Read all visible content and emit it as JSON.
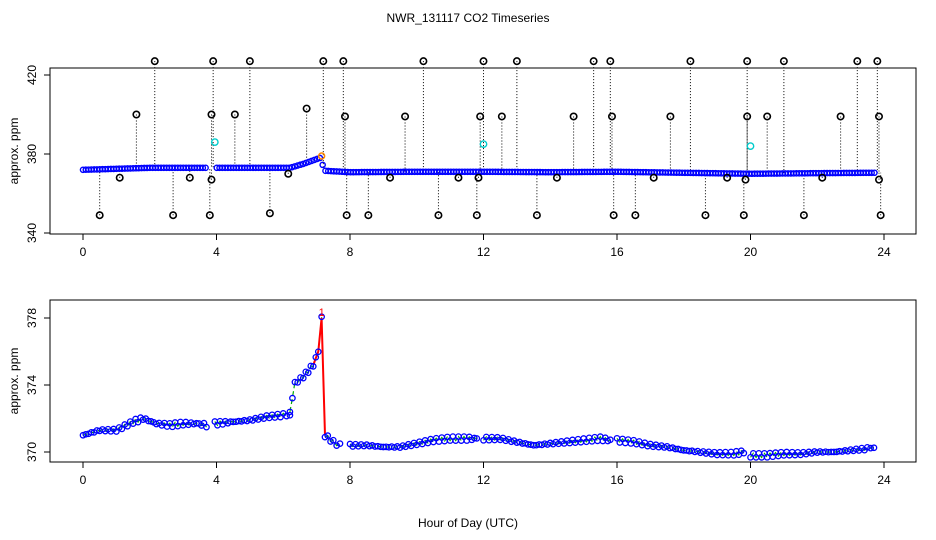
{
  "chart_data": {
    "title": "NWR_131117  CO2 Timeseries",
    "xlabel": "Hour of Day (UTC)",
    "colors": {
      "points": "#0000ff",
      "outline_points": "#000000",
      "flagged": "#00cccc",
      "smooth": "#00aa00",
      "spike": "#ff0000",
      "spike_marker": "#ff8800"
    },
    "panels": [
      {
        "type": "scatter",
        "ylabel": "approx. ppm",
        "xlim": [
          0,
          24
        ],
        "ylim": [
          340,
          420
        ],
        "x_ticks": [
          "0",
          "4",
          "8",
          "12",
          "16",
          "20",
          "24"
        ],
        "y_ticks": [
          "340",
          "380",
          "420"
        ],
        "y_tick_values": [
          340,
          380,
          420
        ],
        "baseline": [
          [
            0,
            372
          ],
          [
            2,
            373
          ],
          [
            4,
            373
          ],
          [
            5.5,
            373
          ],
          [
            6.2,
            373
          ],
          [
            6.6,
            375
          ],
          [
            7.1,
            378
          ],
          [
            7.25,
            371.5
          ],
          [
            8,
            370.8
          ],
          [
            10,
            371
          ],
          [
            12,
            371
          ],
          [
            14,
            370.8
          ],
          [
            16,
            371
          ],
          [
            18,
            370.5
          ],
          [
            20,
            370
          ],
          [
            22,
            370.3
          ],
          [
            23.7,
            370.5
          ]
        ],
        "spikes_high": [
          [
            2.15,
            428
          ],
          [
            3.9,
            428
          ],
          [
            5.0,
            428
          ],
          [
            7.2,
            428
          ],
          [
            7.8,
            427
          ],
          [
            10.2,
            427
          ],
          [
            12.0,
            427
          ],
          [
            13.0,
            427
          ],
          [
            15.3,
            427
          ],
          [
            15.8,
            427
          ],
          [
            18.2,
            427
          ],
          [
            19.9,
            427
          ],
          [
            21.0,
            427
          ],
          [
            23.2,
            427
          ],
          [
            23.8,
            427
          ]
        ],
        "spikes_mid": [
          [
            1.6,
            400
          ],
          [
            3.85,
            400
          ],
          [
            4.55,
            400
          ],
          [
            6.7,
            403
          ],
          [
            7.85,
            399
          ],
          [
            9.65,
            399
          ],
          [
            11.9,
            399
          ],
          [
            12.55,
            399
          ],
          [
            14.7,
            399
          ],
          [
            15.85,
            399
          ],
          [
            17.6,
            399
          ],
          [
            19.9,
            399
          ],
          [
            20.5,
            399
          ],
          [
            22.7,
            399
          ],
          [
            23.85,
            399
          ]
        ],
        "spikes_low": [
          [
            0.5,
            349
          ],
          [
            1.1,
            368
          ],
          [
            2.7,
            349
          ],
          [
            3.2,
            368
          ],
          [
            3.8,
            349
          ],
          [
            3.85,
            367
          ],
          [
            5.6,
            350
          ],
          [
            6.15,
            370
          ],
          [
            7.9,
            349
          ],
          [
            8.55,
            349
          ],
          [
            9.2,
            368
          ],
          [
            10.65,
            349
          ],
          [
            11.25,
            368
          ],
          [
            11.8,
            349
          ],
          [
            11.85,
            368
          ],
          [
            13.6,
            349
          ],
          [
            14.2,
            368
          ],
          [
            15.9,
            349
          ],
          [
            16.55,
            349
          ],
          [
            17.1,
            368
          ],
          [
            18.65,
            349
          ],
          [
            19.3,
            368
          ],
          [
            19.8,
            349
          ],
          [
            19.85,
            367
          ],
          [
            21.6,
            349
          ],
          [
            22.15,
            368
          ],
          [
            23.85,
            367
          ],
          [
            23.9,
            349
          ]
        ],
        "flagged": [
          [
            3.95,
            386
          ],
          [
            12.0,
            385
          ],
          [
            20.0,
            384
          ]
        ]
      },
      {
        "type": "line",
        "ylabel": "approx. ppm",
        "xlim": [
          0,
          24
        ],
        "ylim": [
          370,
          378
        ],
        "x_ticks": [
          "0",
          "4",
          "8",
          "12",
          "16",
          "20",
          "24"
        ],
        "y_ticks": [
          "370",
          "374",
          "378"
        ],
        "y_tick_values": [
          370,
          374,
          378
        ],
        "segments": [
          [
            [
              0,
              371.0
            ],
            [
              0.5,
              371.3
            ],
            [
              1.0,
              371.3
            ],
            [
              1.5,
              371.8
            ],
            [
              1.8,
              372.0
            ],
            [
              2.2,
              371.7
            ],
            [
              2.6,
              371.6
            ],
            [
              3.0,
              371.7
            ],
            [
              3.4,
              371.7
            ],
            [
              3.7,
              371.6
            ]
          ],
          [
            [
              3.95,
              371.7
            ],
            [
              4.5,
              371.8
            ],
            [
              5.0,
              371.9
            ],
            [
              5.5,
              372.1
            ],
            [
              6.0,
              372.2
            ],
            [
              6.2,
              372.2
            ]
          ],
          [
            [
              6.2,
              372.4
            ],
            [
              6.35,
              374.1
            ],
            [
              6.6,
              374.5
            ],
            [
              6.9,
              375.2
            ],
            [
              7.05,
              376.0
            ],
            [
              7.15,
              378.0
            ],
            [
              7.25,
              371.0
            ],
            [
              7.5,
              370.6
            ],
            [
              7.7,
              370.4
            ]
          ],
          [
            [
              8.0,
              370.4
            ],
            [
              8.5,
              370.4
            ],
            [
              9.0,
              370.3
            ],
            [
              9.5,
              370.3
            ],
            [
              10.0,
              370.5
            ],
            [
              10.5,
              370.7
            ],
            [
              11.0,
              370.8
            ],
            [
              11.5,
              370.8
            ],
            [
              11.8,
              370.8
            ]
          ],
          [
            [
              12.0,
              370.8
            ],
            [
              12.5,
              370.8
            ],
            [
              13.0,
              370.6
            ],
            [
              13.5,
              370.4
            ],
            [
              14.0,
              370.5
            ],
            [
              14.5,
              370.6
            ],
            [
              15.0,
              370.7
            ],
            [
              15.5,
              370.8
            ],
            [
              15.8,
              370.7
            ]
          ],
          [
            [
              16.0,
              370.7
            ],
            [
              16.5,
              370.6
            ],
            [
              17.0,
              370.4
            ],
            [
              17.5,
              370.3
            ],
            [
              18.0,
              370.1
            ],
            [
              18.5,
              370.0
            ],
            [
              19.0,
              369.9
            ],
            [
              19.5,
              369.9
            ],
            [
              19.8,
              370.0
            ]
          ],
          [
            [
              20.0,
              369.8
            ],
            [
              20.5,
              369.8
            ],
            [
              21.0,
              369.9
            ],
            [
              21.5,
              369.9
            ],
            [
              22.0,
              370.0
            ],
            [
              22.5,
              370.0
            ],
            [
              23.0,
              370.1
            ],
            [
              23.5,
              370.2
            ],
            [
              23.7,
              370.3
            ]
          ]
        ],
        "spike_label": {
          "x": 7.15,
          "y": 378.0,
          "text": "1"
        }
      }
    ]
  }
}
